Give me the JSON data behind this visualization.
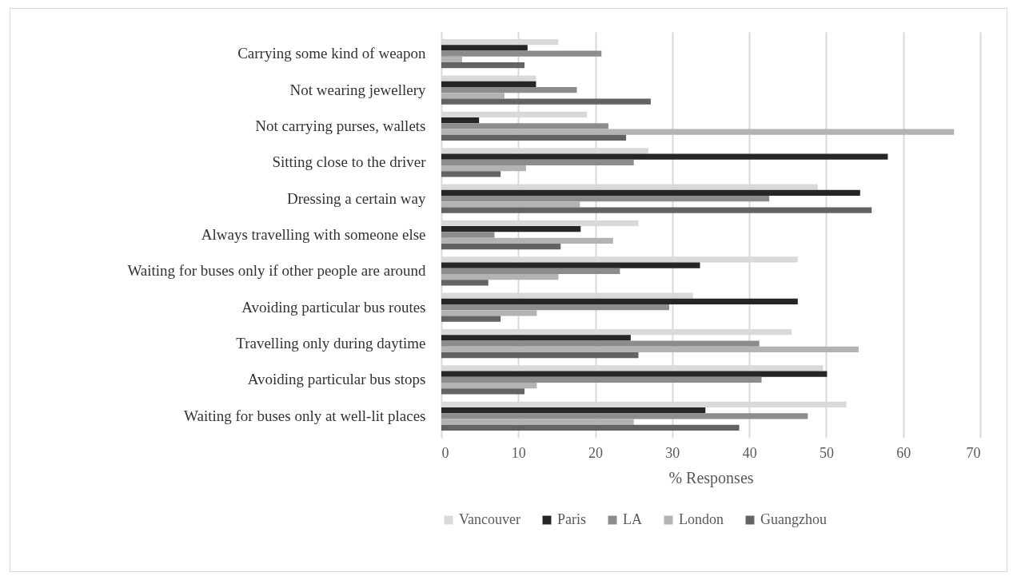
{
  "chart_data": {
    "type": "bar",
    "orientation": "horizontal",
    "xlabel": "% Responses",
    "categories": [
      "Carrying some kind of weapon",
      "Not wearing jewellery",
      "Not carrying purses, wallets",
      "Sitting close to the driver",
      "Dressing a certain way",
      "Always travelling with someone else",
      "Waiting for buses only if other people are around",
      "Avoiding particular bus routes",
      "Travelling only during daytime",
      "Avoiding particular bus stops",
      "Waiting for buses only at well-lit places"
    ],
    "series": [
      {
        "name": "Vancouver",
        "color": "#d9d9d9",
        "values": [
          15.2,
          12.3,
          18.9,
          26.9,
          48.9,
          25.6,
          46.3,
          32.7,
          45.5,
          49.6,
          52.6
        ]
      },
      {
        "name": "Paris",
        "color": "#262626",
        "values": [
          11.2,
          12.3,
          4.9,
          58.0,
          54.4,
          18.1,
          33.6,
          46.3,
          24.6,
          50.1,
          34.3
        ]
      },
      {
        "name": "LA",
        "color": "#8c8c8c",
        "values": [
          20.8,
          17.6,
          21.7,
          25.0,
          42.6,
          6.9,
          23.2,
          29.6,
          41.3,
          41.6,
          47.6
        ]
      },
      {
        "name": "London",
        "color": "#b3b3b3",
        "values": [
          2.7,
          8.2,
          66.6,
          11.0,
          18.0,
          22.3,
          15.2,
          12.4,
          54.2,
          12.4,
          25.0
        ]
      },
      {
        "name": "Guangzhou",
        "color": "#636363",
        "values": [
          10.8,
          27.2,
          24.0,
          7.7,
          55.9,
          15.5,
          6.1,
          7.7,
          25.6,
          10.8,
          38.7
        ]
      }
    ],
    "xlim": [
      0,
      70
    ],
    "xticks": [
      0,
      10,
      20,
      30,
      40,
      50,
      60,
      70
    ],
    "grid": "x",
    "legend": "bottom"
  }
}
